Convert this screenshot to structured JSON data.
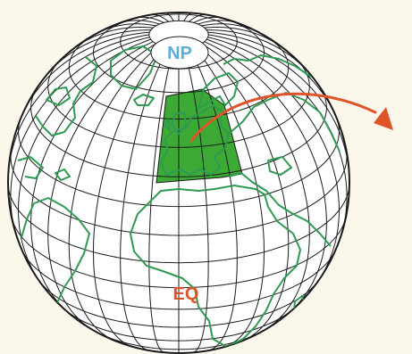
{
  "labels": {
    "north_pole": "NP",
    "equator": "EQ"
  },
  "colors": {
    "background": "#fbf7ea",
    "globe_fill": "#ffffff",
    "grid": "#1b1b1b",
    "coastline": "#2e9a52",
    "region_fill": "#3daa35",
    "arrow": "#e0542a",
    "north_pole_label": "#5aaee0",
    "equator_label": "#e0542a"
  },
  "icons": {
    "arrow": "curved-arrow-icon"
  }
}
